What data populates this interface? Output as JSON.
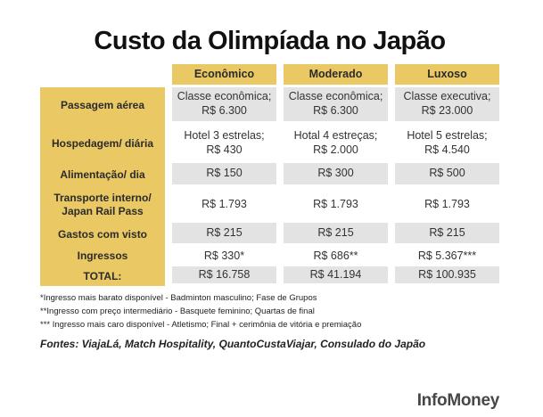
{
  "chart_data": {
    "type": "table",
    "title": "Custo da Olimpíada no Japão",
    "columns": [
      "Econômico",
      "Moderado",
      "Luxoso"
    ],
    "rows": [
      {
        "label": "Passagem aérea",
        "values": [
          "Classe econômica;\nR$ 6.300",
          "Classe econômica;\nR$ 6.300",
          "Classe executiva;\nR$ 23.000"
        ]
      },
      {
        "label": "Hospedagem/ diária",
        "values": [
          "Hotel 3 estrelas;\nR$ 430",
          "Hotal 4 estreças;\nR$ 2.000",
          "Hotel 5 estrelas;\nR$ 4.540"
        ]
      },
      {
        "label": "Alimentação/ dia",
        "values": [
          "R$ 150",
          "R$ 300",
          "R$ 500"
        ]
      },
      {
        "label": "Transporte interno/\nJapan Rail Pass",
        "values": [
          "R$ 1.793",
          "R$ 1.793",
          "R$ 1.793"
        ]
      },
      {
        "label": "Gastos com visto",
        "values": [
          "R$ 215",
          "R$ 215",
          "R$ 215"
        ]
      },
      {
        "label": "Ingressos",
        "values": [
          "R$ 330*",
          "R$ 686**",
          "R$ 5.367***"
        ]
      },
      {
        "label": "TOTAL:",
        "values": [
          "R$ 16.758",
          "R$ 41.194",
          "R$ 100.935"
        ]
      }
    ],
    "footnotes": [
      "*Ingresso mais barato disponível - Badminton masculino; Fase de Grupos",
      "**Ingresso com preço intermediário - Basquete feminino; Quartas de final",
      "*** Ingresso mais caro disponível - Atletismo; Final + cerimônia de vitória e premiação"
    ],
    "sources": "Fontes: ViajaLá, Match Hospitality, QuantoCustaViajar, Consulado do Japão"
  },
  "brand": "InfoMoney",
  "colors": {
    "gold": "#eac863",
    "cell_gray": "#e3e3e3",
    "title_black": "#111111",
    "text_dark": "#2b2b2b",
    "brand_gray": "#474747"
  }
}
